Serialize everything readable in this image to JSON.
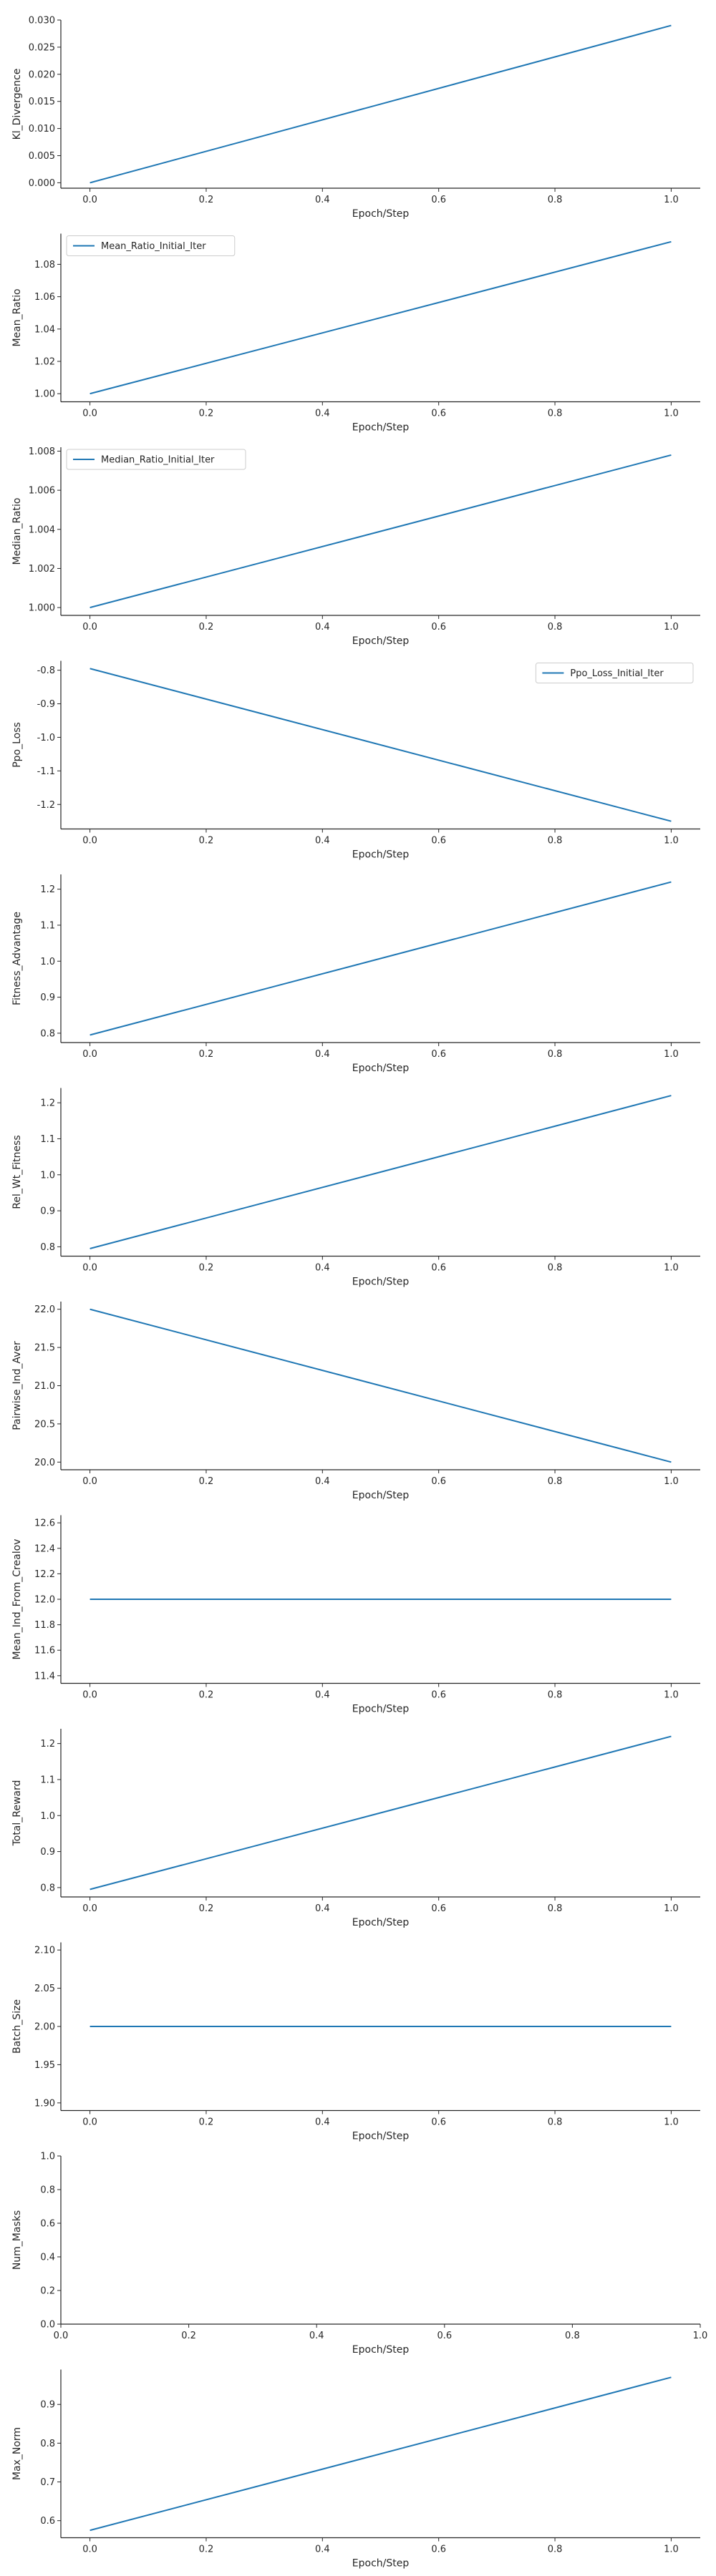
{
  "chart_data": [
    {
      "type": "line",
      "ylabel": "Kl_Divergence",
      "xlabel": "Epoch/Step",
      "x": [
        0.0,
        1.0
      ],
      "series": [
        {
          "values": [
            0.0,
            0.029
          ]
        }
      ],
      "xlim": [
        -0.05,
        1.05
      ],
      "ylim": [
        -0.001,
        0.03
      ],
      "xticks": [
        "0.0",
        "0.2",
        "0.4",
        "0.6",
        "0.8",
        "1.0"
      ],
      "yticks": [
        "0.000",
        "0.005",
        "0.010",
        "0.015",
        "0.020",
        "0.025",
        "0.030"
      ]
    },
    {
      "type": "line",
      "ylabel": "Mean_Ratio",
      "xlabel": "Epoch/Step",
      "x": [
        0.0,
        1.0
      ],
      "series": [
        {
          "name": "Mean_Ratio_Initial_Iter",
          "values": [
            1.0,
            1.094
          ]
        }
      ],
      "legend": "top-left",
      "xlim": [
        -0.05,
        1.05
      ],
      "ylim": [
        0.995,
        1.099
      ],
      "xticks": [
        "0.0",
        "0.2",
        "0.4",
        "0.6",
        "0.8",
        "1.0"
      ],
      "yticks": [
        "1.00",
        "1.02",
        "1.04",
        "1.06",
        "1.08"
      ]
    },
    {
      "type": "line",
      "ylabel": "Median_Ratio",
      "xlabel": "Epoch/Step",
      "x": [
        0.0,
        1.0
      ],
      "series": [
        {
          "name": "Median_Ratio_Initial_Iter",
          "values": [
            1.0,
            1.0078
          ]
        }
      ],
      "legend": "top-left",
      "xlim": [
        -0.05,
        1.05
      ],
      "ylim": [
        0.9996,
        1.0082
      ],
      "xticks": [
        "0.0",
        "0.2",
        "0.4",
        "0.6",
        "0.8",
        "1.0"
      ],
      "yticks": [
        "1.000",
        "1.002",
        "1.004",
        "1.006",
        "1.008"
      ]
    },
    {
      "type": "line",
      "ylabel": "Ppo_Loss",
      "xlabel": "Epoch/Step",
      "x": [
        0.0,
        1.0
      ],
      "series": [
        {
          "name": "Ppo_Loss_Initial_Iter",
          "values": [
            -0.795,
            -1.25
          ]
        }
      ],
      "legend": "top-right",
      "xlim": [
        -0.05,
        1.05
      ],
      "ylim": [
        -1.273,
        -0.772
      ],
      "xticks": [
        "0.0",
        "0.2",
        "0.4",
        "0.6",
        "0.8",
        "1.0"
      ],
      "yticks": [
        "-0.8",
        "-0.9",
        "-1.0",
        "-1.1",
        "-1.2"
      ]
    },
    {
      "type": "line",
      "ylabel": "Fitness_Advantage",
      "xlabel": "Epoch/Step",
      "x": [
        0.0,
        1.0
      ],
      "series": [
        {
          "values": [
            0.795,
            1.22
          ]
        }
      ],
      "xlim": [
        -0.05,
        1.05
      ],
      "ylim": [
        0.774,
        1.241
      ],
      "xticks": [
        "0.0",
        "0.2",
        "0.4",
        "0.6",
        "0.8",
        "1.0"
      ],
      "yticks": [
        "0.8",
        "0.9",
        "1.0",
        "1.1",
        "1.2"
      ]
    },
    {
      "type": "line",
      "ylabel": "Rel_Wt_Fitness",
      "xlabel": "Epoch/Step",
      "x": [
        0.0,
        1.0
      ],
      "series": [
        {
          "values": [
            0.795,
            1.22
          ]
        }
      ],
      "xlim": [
        -0.05,
        1.05
      ],
      "ylim": [
        0.774,
        1.241
      ],
      "xticks": [
        "0.0",
        "0.2",
        "0.4",
        "0.6",
        "0.8",
        "1.0"
      ],
      "yticks": [
        "0.8",
        "0.9",
        "1.0",
        "1.1",
        "1.2"
      ]
    },
    {
      "type": "line",
      "ylabel": "Pairwise_Ind_Aver",
      "xlabel": "Epoch/Step",
      "x": [
        0.0,
        1.0
      ],
      "series": [
        {
          "values": [
            22.0,
            20.0
          ]
        }
      ],
      "xlim": [
        -0.05,
        1.05
      ],
      "ylim": [
        19.9,
        22.1
      ],
      "xticks": [
        "0.0",
        "0.2",
        "0.4",
        "0.6",
        "0.8",
        "1.0"
      ],
      "yticks": [
        "20.0",
        "20.5",
        "21.0",
        "21.5",
        "22.0"
      ]
    },
    {
      "type": "line",
      "ylabel": "Mean_Ind_From_Crealov",
      "xlabel": "Epoch/Step",
      "x": [
        0.0,
        1.0
      ],
      "series": [
        {
          "values": [
            12.0,
            12.0
          ]
        }
      ],
      "xlim": [
        -0.05,
        1.05
      ],
      "ylim": [
        11.34,
        12.66
      ],
      "xticks": [
        "0.0",
        "0.2",
        "0.4",
        "0.6",
        "0.8",
        "1.0"
      ],
      "yticks": [
        "11.4",
        "11.6",
        "11.8",
        "12.0",
        "12.2",
        "12.4",
        "12.6"
      ]
    },
    {
      "type": "line",
      "ylabel": "Total_Reward",
      "xlabel": "Epoch/Step",
      "x": [
        0.0,
        1.0
      ],
      "series": [
        {
          "values": [
            0.795,
            1.22
          ]
        }
      ],
      "xlim": [
        -0.05,
        1.05
      ],
      "ylim": [
        0.774,
        1.241
      ],
      "xticks": [
        "0.0",
        "0.2",
        "0.4",
        "0.6",
        "0.8",
        "1.0"
      ],
      "yticks": [
        "0.8",
        "0.9",
        "1.0",
        "1.1",
        "1.2"
      ]
    },
    {
      "type": "line",
      "ylabel": "Batch_Size",
      "xlabel": "Epoch/Step",
      "x": [
        0.0,
        1.0
      ],
      "series": [
        {
          "values": [
            2.0,
            2.0
          ]
        }
      ],
      "xlim": [
        -0.05,
        1.05
      ],
      "ylim": [
        1.89,
        2.11
      ],
      "xticks": [
        "0.0",
        "0.2",
        "0.4",
        "0.6",
        "0.8",
        "1.0"
      ],
      "yticks": [
        "1.90",
        "1.95",
        "2.00",
        "2.05",
        "2.10"
      ]
    },
    {
      "type": "line",
      "ylabel": "Num_Masks",
      "xlabel": "Epoch/Step",
      "x": [],
      "series": [],
      "xlim": [
        0.0,
        1.0
      ],
      "ylim": [
        0.0,
        1.0
      ],
      "xticks": [
        "0.0",
        "0.2",
        "0.4",
        "0.6",
        "0.8",
        "1.0"
      ],
      "yticks": [
        "0.0",
        "0.2",
        "0.4",
        "0.6",
        "0.8",
        "1.0"
      ]
    },
    {
      "type": "line",
      "ylabel": "Max_Norm",
      "xlabel": "Epoch/Step",
      "x": [
        0.0,
        1.0
      ],
      "series": [
        {
          "values": [
            0.575,
            0.97
          ]
        }
      ],
      "xlim": [
        -0.05,
        1.05
      ],
      "ylim": [
        0.556,
        0.99
      ],
      "xticks": [
        "0.0",
        "0.2",
        "0.4",
        "0.6",
        "0.8",
        "1.0"
      ],
      "yticks": [
        "0.6",
        "0.7",
        "0.8",
        "0.9"
      ]
    }
  ],
  "colors": {
    "line": "#1f77b4",
    "axis": "#262626",
    "legend_border": "#cccccc"
  }
}
